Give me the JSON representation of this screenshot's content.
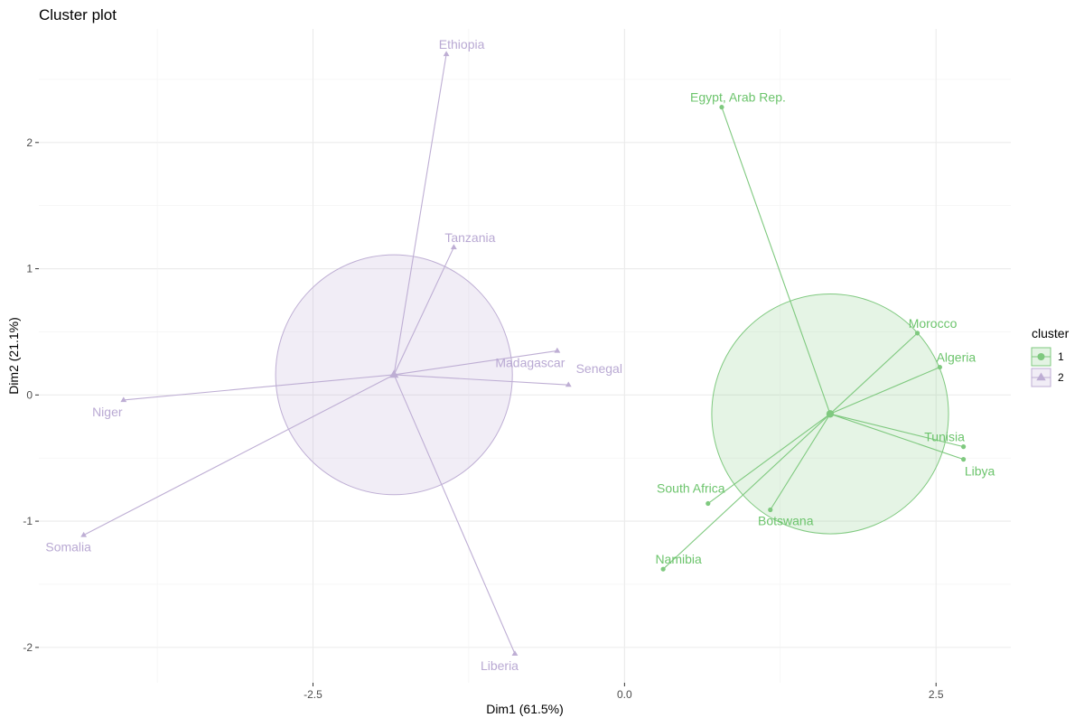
{
  "chart_data": {
    "type": "scatter",
    "title": "Cluster plot",
    "xlabel": "Dim1 (61.5%)",
    "ylabel": "Dim2 (21.1%)",
    "xlim": [
      -4.7,
      3.1
    ],
    "ylim": [
      -2.28,
      2.9
    ],
    "x_ticks": [
      -2.5,
      0.0,
      2.5
    ],
    "x_tick_labels": [
      "-2.5",
      "0.0",
      "2.5"
    ],
    "y_ticks": [
      -2,
      -1,
      0,
      1,
      2
    ],
    "y_tick_labels": [
      "-2",
      "-1",
      "0",
      "1",
      "2"
    ],
    "grid": true,
    "legend": {
      "title": "cluster",
      "position": "right",
      "entries": [
        {
          "label": "1",
          "color": "#7fc97f",
          "shape": "circle"
        },
        {
          "label": "2",
          "color": "#beaed4",
          "shape": "triangle"
        }
      ]
    },
    "clusters": [
      {
        "name": "1",
        "color": "#7fc97f",
        "text_color": "#6cc46c",
        "shape": "circle",
        "center": [
          1.65,
          -0.15
        ],
        "radius": 0.95,
        "points": [
          {
            "label": "Egypt, Arab Rep.",
            "x": 0.78,
            "y": 2.28
          },
          {
            "label": "Morocco",
            "x": 2.35,
            "y": 0.49
          },
          {
            "label": "Algeria",
            "x": 2.53,
            "y": 0.22
          },
          {
            "label": "Tunisia",
            "x": 2.72,
            "y": -0.41
          },
          {
            "label": "Libya",
            "x": 2.72,
            "y": -0.51
          },
          {
            "label": "South Africa",
            "x": 0.67,
            "y": -0.86
          },
          {
            "label": "Botswana",
            "x": 1.17,
            "y": -0.91
          },
          {
            "label": "Namibia",
            "x": 0.31,
            "y": -1.38
          }
        ]
      },
      {
        "name": "2",
        "color": "#beaed4",
        "text_color": "#b9a9d3",
        "shape": "triangle",
        "center": [
          -1.85,
          0.16
        ],
        "radius": 0.95,
        "points": [
          {
            "label": "Ethiopia",
            "x": -1.43,
            "y": 2.7
          },
          {
            "label": "Tanzania",
            "x": -1.37,
            "y": 1.17
          },
          {
            "label": "Madagascar",
            "x": -0.54,
            "y": 0.35
          },
          {
            "label": "Senegal",
            "x": -0.45,
            "y": 0.08
          },
          {
            "label": "Niger",
            "x": -4.02,
            "y": -0.04
          },
          {
            "label": "Somalia",
            "x": -4.34,
            "y": -1.11
          },
          {
            "label": "Liberia",
            "x": -0.88,
            "y": -2.05
          }
        ]
      }
    ]
  }
}
